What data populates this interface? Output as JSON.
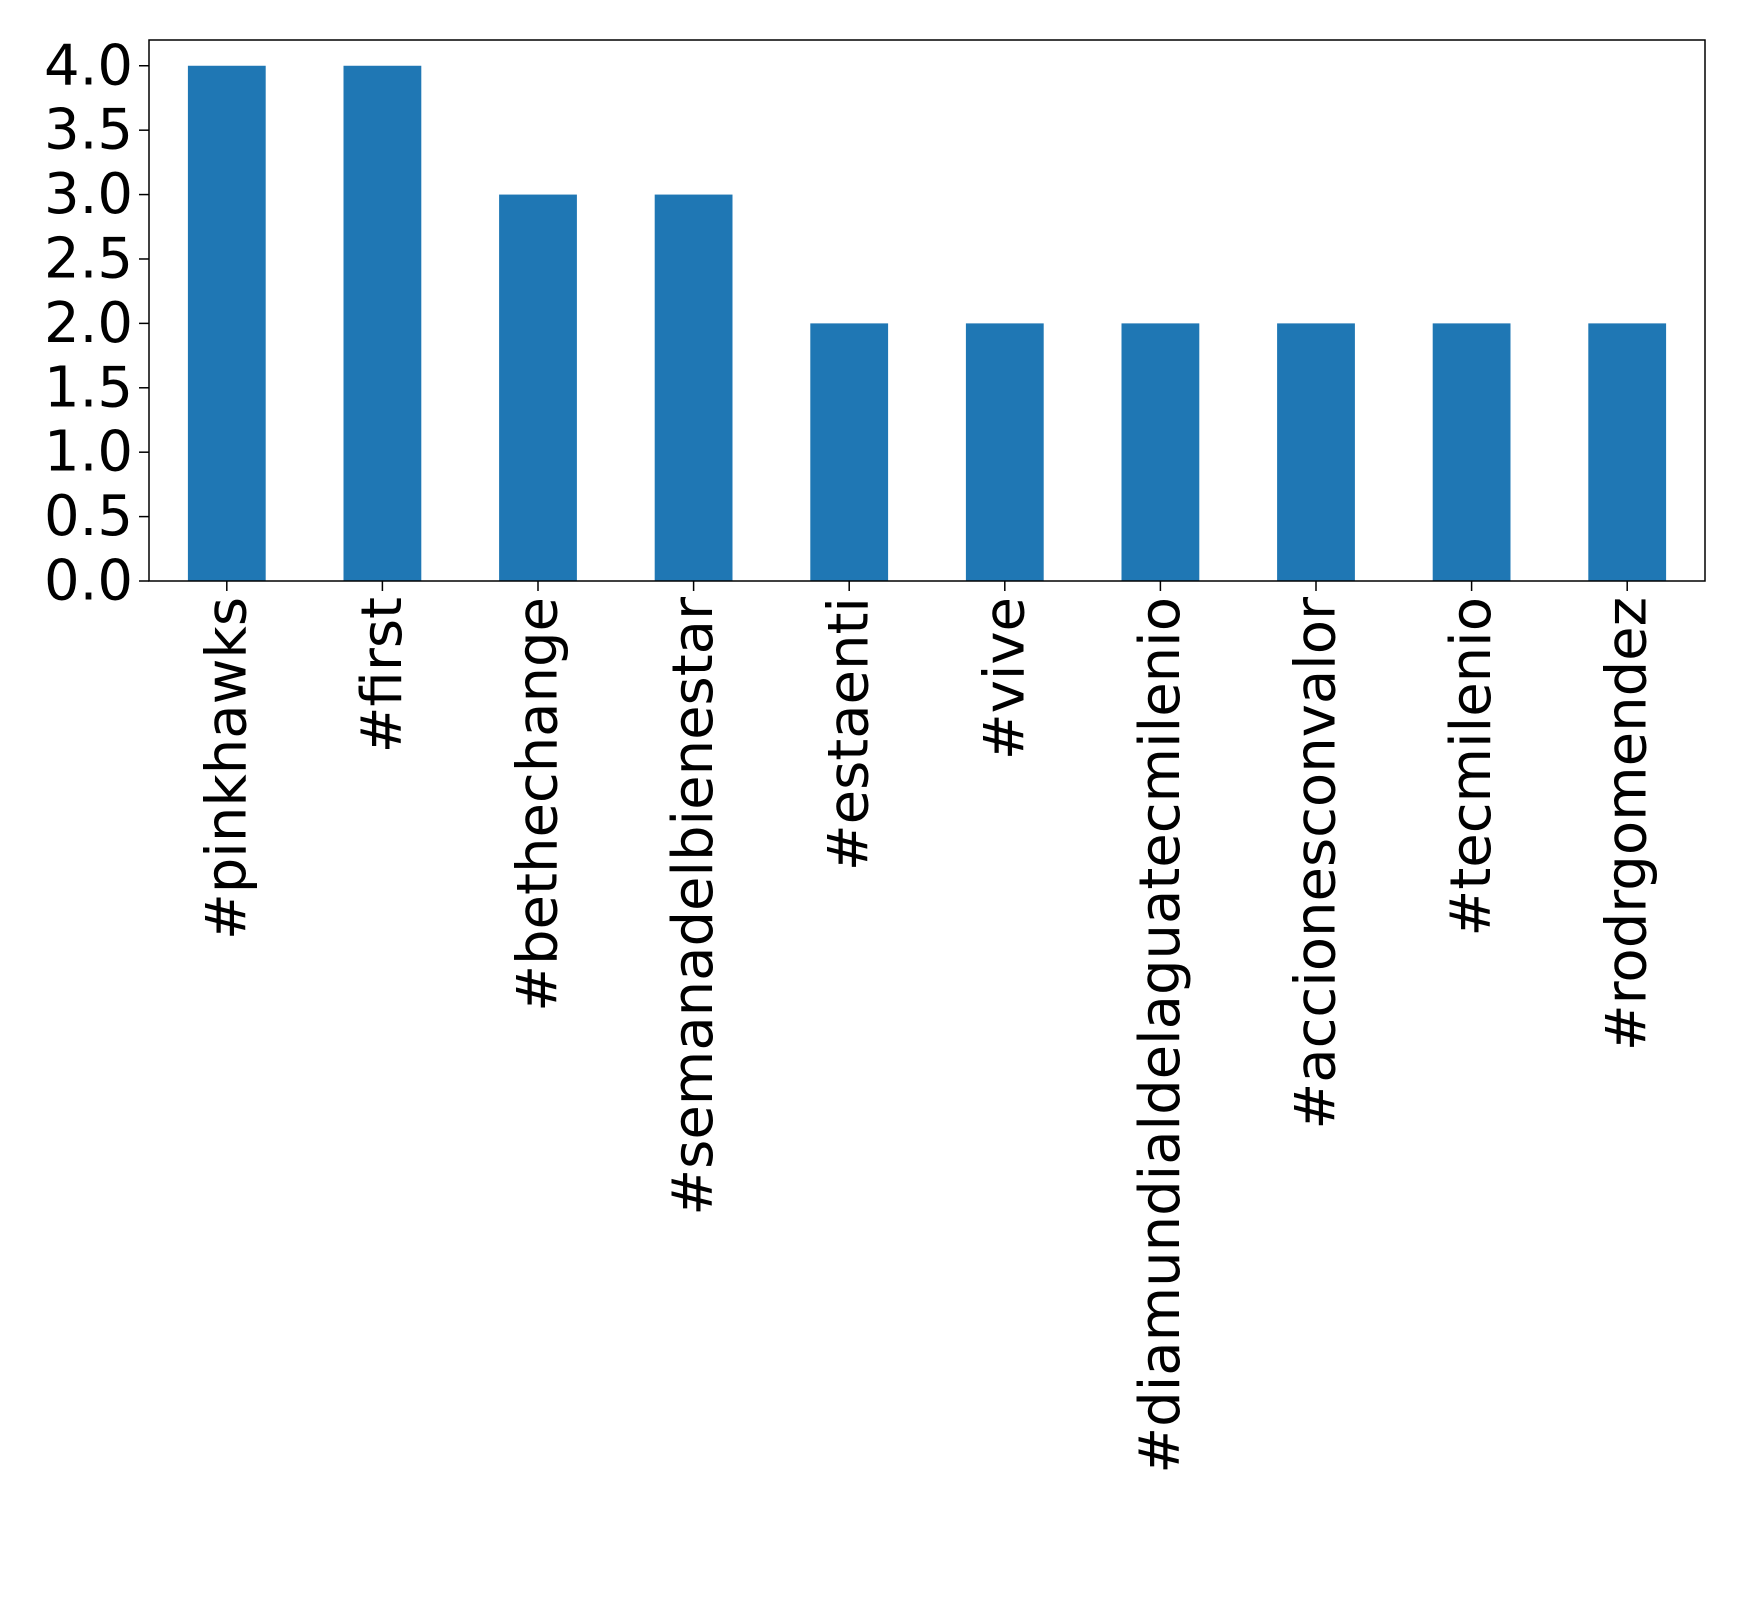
{
  "chart_data": {
    "type": "bar",
    "categories": [
      "#pinkhawks",
      "#first",
      "#bethechange",
      "#semanadelbienestar",
      "#estaenti",
      "#vive",
      "#diamundialdelaguatecmilenio",
      "#accionesconvalor",
      "#tecmilenio",
      "#rodrgomendez"
    ],
    "values": [
      4,
      4,
      3,
      3,
      2,
      2,
      2,
      2,
      2,
      2
    ],
    "title": "",
    "xlabel": "",
    "ylabel": "",
    "ylim": [
      0,
      4.2
    ],
    "yticks": [
      0.0,
      0.5,
      1.0,
      1.5,
      2.0,
      2.5,
      3.0,
      3.5,
      4.0
    ],
    "ytick_labels": [
      "0.0",
      "0.5",
      "1.0",
      "1.5",
      "2.0",
      "2.5",
      "3.0",
      "3.5",
      "4.0"
    ],
    "bar_color": "#1f77b4",
    "grid": false,
    "legend": "none"
  }
}
